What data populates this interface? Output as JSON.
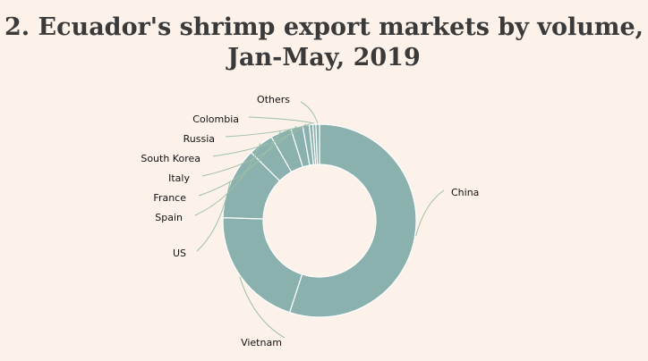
{
  "chart_data": {
    "type": "pie",
    "variant": "donut",
    "title_line1": "2. Ecuador's shrimp export markets by volume,",
    "title_line2": "Jan-May, 2019",
    "unit": "share of export volume (%)",
    "categories": [
      "China",
      "Vietnam",
      "US",
      "Spain",
      "France",
      "Italy",
      "South Korea",
      "Russia",
      "Colombia",
      "Others"
    ],
    "values": [
      55.0,
      20.5,
      12.0,
      4.2,
      3.5,
      2.0,
      1.1,
      0.6,
      0.5,
      0.6
    ],
    "legend": "none",
    "colors": {
      "slice": "#8ab1ad",
      "separator": "#ffffff",
      "leader": "#9ebfa8",
      "background": "#fcf2ea",
      "title": "#3a3a3a"
    }
  }
}
